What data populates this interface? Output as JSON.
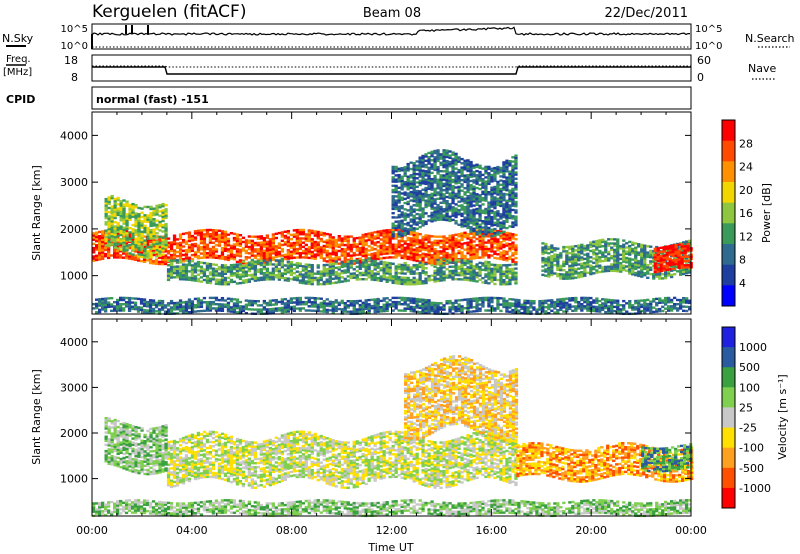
{
  "header": {
    "station": "Kerguelen (fitACF)",
    "beam": "Beam 08",
    "date": "22/Dec/2011"
  },
  "sky_panel": {
    "left_label": "N.Sky",
    "right_label": "N.Search",
    "left_ticks": [
      "10^5",
      "10^0"
    ],
    "right_ticks": [
      "10^5",
      "10^0"
    ]
  },
  "freq_panel": {
    "left_label_1": "Freq.",
    "left_label_2": "[MHz]",
    "right_label": "Nave",
    "left_ticks": [
      "18",
      "8"
    ],
    "right_ticks": [
      "60",
      "0"
    ]
  },
  "cpid": {
    "label": "CPID",
    "value": "normal (fast) -151"
  },
  "colors": {
    "power": [
      "#0000ff",
      "#1f3fa0",
      "#2e6b8e",
      "#3a9a5a",
      "#8ec63f",
      "#f2d600",
      "#ff9000",
      "#ff4a00",
      "#ff0000"
    ],
    "velocity": [
      "#2020e0",
      "#2a5aa0",
      "#3aa040",
      "#80d050",
      "#c8c8c8",
      "#ffe000",
      "#ffa020",
      "#ff5000",
      "#ff0000"
    ]
  },
  "chart_data": [
    {
      "type": "heatmap",
      "quantity": "power",
      "xlabel": "",
      "ylabel": "Slant Range [km]",
      "xlim": [
        "00:00",
        "00:00"
      ],
      "ylim": [
        180,
        4500
      ],
      "yticks": [
        "1000",
        "2000",
        "3000",
        "4000"
      ],
      "colorbar": {
        "label": "Power [dB]",
        "ticks": [
          "4",
          "8",
          "12",
          "16",
          "20",
          "24",
          "28"
        ],
        "range": [
          0,
          32
        ]
      },
      "bands": [
        {
          "start_hr": 0.0,
          "end_hr": 17.0,
          "range_lo": 1300,
          "range_hi": 1900,
          "level": 7
        },
        {
          "start_hr": 0.5,
          "end_hr": 3.0,
          "range_lo": 1500,
          "range_hi": 2600,
          "level": 4
        },
        {
          "start_hr": 3.0,
          "end_hr": 17.0,
          "range_lo": 850,
          "range_hi": 1300,
          "level": 3
        },
        {
          "start_hr": 12.0,
          "end_hr": 17.0,
          "range_lo": 2000,
          "range_hi": 3500,
          "level": 2
        },
        {
          "start_hr": 18.0,
          "end_hr": 24.0,
          "range_lo": 1000,
          "range_hi": 1700,
          "level": 3
        },
        {
          "start_hr": 22.5,
          "end_hr": 24.0,
          "range_lo": 1100,
          "range_hi": 1600,
          "level": 8
        },
        {
          "start_hr": 0.0,
          "end_hr": 24.0,
          "range_lo": 200,
          "range_hi": 500,
          "level": 2
        }
      ]
    },
    {
      "type": "heatmap",
      "quantity": "velocity",
      "xlabel": "Time UT",
      "ylabel": "Slant Range [km]",
      "xlim": [
        "00:00",
        "00:00"
      ],
      "xticks": [
        "00:00",
        "04:00",
        "08:00",
        "12:00",
        "16:00",
        "20:00",
        "00:00"
      ],
      "ylim": [
        180,
        4500
      ],
      "yticks": [
        "1000",
        "2000",
        "3000",
        "4000"
      ],
      "colorbar": {
        "label": "Velocity [m s⁻¹]",
        "ticks": [
          "1000",
          "500",
          "100",
          "25",
          "-25",
          "-100",
          "-500",
          "-1000"
        ],
        "range": [
          -1000,
          1000
        ]
      },
      "bands": [
        {
          "start_hr": 3.0,
          "end_hr": 17.0,
          "range_lo": 900,
          "range_hi": 1900,
          "level": 4
        },
        {
          "start_hr": 0.5,
          "end_hr": 3.0,
          "range_lo": 1200,
          "range_hi": 2200,
          "level": 3
        },
        {
          "start_hr": 12.5,
          "end_hr": 17.0,
          "range_lo": 2000,
          "range_hi": 3500,
          "level": 5
        },
        {
          "start_hr": 17.0,
          "end_hr": 24.0,
          "range_lo": 1000,
          "range_hi": 1700,
          "level": 6
        },
        {
          "start_hr": 22.0,
          "end_hr": 24.0,
          "range_lo": 1200,
          "range_hi": 1700,
          "level": 2
        },
        {
          "start_hr": 0.0,
          "end_hr": 24.0,
          "range_lo": 200,
          "range_hi": 500,
          "level": 3
        }
      ]
    }
  ]
}
